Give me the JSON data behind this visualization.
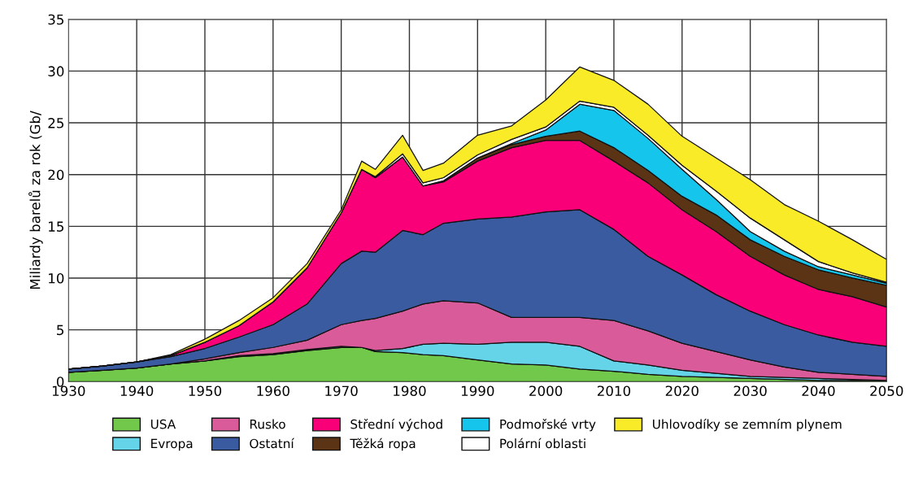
{
  "chart_data": {
    "type": "area",
    "stacked": true,
    "ylabel": "Miliardy barelů za rok (Gb/",
    "x": [
      1930,
      1935,
      1940,
      1945,
      1950,
      1955,
      1960,
      1965,
      1970,
      1973,
      1975,
      1979,
      1982,
      1985,
      1990,
      1995,
      2000,
      2005,
      2010,
      2015,
      2020,
      2025,
      2030,
      2035,
      2040,
      2045,
      2050
    ],
    "xlim": [
      1930,
      2050
    ],
    "xticks": [
      1930,
      1940,
      1950,
      1960,
      1970,
      1980,
      1990,
      2000,
      2010,
      2020,
      2030,
      2040,
      2050
    ],
    "ylim": [
      0,
      35
    ],
    "yticks": [
      0,
      5,
      10,
      15,
      20,
      25,
      30,
      35
    ],
    "grid": true,
    "legend": "bottom",
    "series": [
      {
        "name": "USA",
        "color": "#72c84a",
        "values": [
          0.9,
          1.1,
          1.3,
          1.7,
          2.0,
          2.4,
          2.6,
          3.0,
          3.3,
          3.3,
          2.9,
          2.8,
          2.6,
          2.5,
          2.1,
          1.7,
          1.6,
          1.2,
          1.0,
          0.7,
          0.5,
          0.4,
          0.3,
          0.2,
          0.1,
          0.1,
          0.1
        ]
      },
      {
        "name": "Evropa",
        "color": "#66d4e8",
        "values": [
          0,
          0,
          0,
          0,
          0,
          0.1,
          0.1,
          0.1,
          0.1,
          0,
          0.1,
          0.4,
          1.0,
          1.2,
          1.5,
          2.1,
          2.2,
          2.2,
          1.0,
          0.9,
          0.6,
          0.4,
          0.2,
          0.2,
          0.2,
          0.1,
          0
        ]
      },
      {
        "name": "Rusko",
        "color": "#d95b9a",
        "values": [
          0,
          0,
          0,
          0,
          0.2,
          0.3,
          0.6,
          0.9,
          2.1,
          2.6,
          3.1,
          3.6,
          3.9,
          4.1,
          4.0,
          2.4,
          2.4,
          2.8,
          3.9,
          3.3,
          2.6,
          2.1,
          1.6,
          1.0,
          0.6,
          0.5,
          0.4
        ]
      },
      {
        "name": "Ostatní",
        "color": "#3a5ba0",
        "values": [
          0.3,
          0.4,
          0.6,
          0.7,
          1.0,
          1.5,
          2.2,
          3.5,
          5.9,
          6.7,
          6.4,
          7.8,
          6.7,
          7.5,
          8.1,
          9.7,
          10.2,
          10.4,
          8.8,
          7.2,
          6.6,
          5.5,
          4.7,
          4.1,
          3.6,
          3.1,
          2.9
        ]
      },
      {
        "name": "Střední východ",
        "color": "#fa0078",
        "values": [
          0,
          0,
          0,
          0.1,
          0.6,
          1.1,
          2.2,
          3.5,
          4.9,
          7.9,
          7.2,
          7.1,
          4.7,
          4.0,
          5.6,
          6.7,
          6.9,
          6.7,
          6.6,
          7.1,
          6.3,
          6.1,
          5.3,
          4.8,
          4.4,
          4.4,
          3.8
        ]
      },
      {
        "name": "Těžká ropa",
        "color": "#5a3415",
        "values": [
          0,
          0,
          0,
          0,
          0,
          0,
          0,
          0,
          0,
          0,
          0,
          0,
          0,
          0.1,
          0.3,
          0.3,
          0.4,
          0.9,
          1.3,
          1.2,
          1.3,
          1.6,
          1.6,
          1.8,
          1.9,
          1.8,
          2.1
        ]
      },
      {
        "name": "Podmořské vrty",
        "color": "#16c5ec",
        "values": [
          0,
          0,
          0,
          0,
          0,
          0,
          0,
          0,
          0,
          0,
          0,
          0,
          0,
          0,
          0,
          0.1,
          0.6,
          2.6,
          3.6,
          3.1,
          2.6,
          1.5,
          0.8,
          0.5,
          0.3,
          0.3,
          0.2
        ]
      },
      {
        "name": "Polární oblasti",
        "color": "#ffffff",
        "values": [
          0,
          0,
          0,
          0,
          0,
          0,
          0,
          0,
          0,
          0,
          0.1,
          0.3,
          0.3,
          0.3,
          0.3,
          0.4,
          0.3,
          0.3,
          0.3,
          0.3,
          0.4,
          0.8,
          1.3,
          1.1,
          0.5,
          0.2,
          0.1
        ]
      },
      {
        "name": "Uhlovodíky se zemním plynem",
        "color": "#faeb28",
        "values": [
          0,
          0,
          0,
          0.1,
          0.3,
          0.5,
          0.4,
          0.4,
          0.3,
          0.8,
          0.7,
          1.8,
          1.2,
          1.4,
          1.9,
          1.3,
          2.6,
          3.3,
          2.6,
          3.0,
          2.8,
          3.2,
          3.7,
          3.4,
          3.9,
          3.2,
          2.2
        ]
      }
    ]
  }
}
